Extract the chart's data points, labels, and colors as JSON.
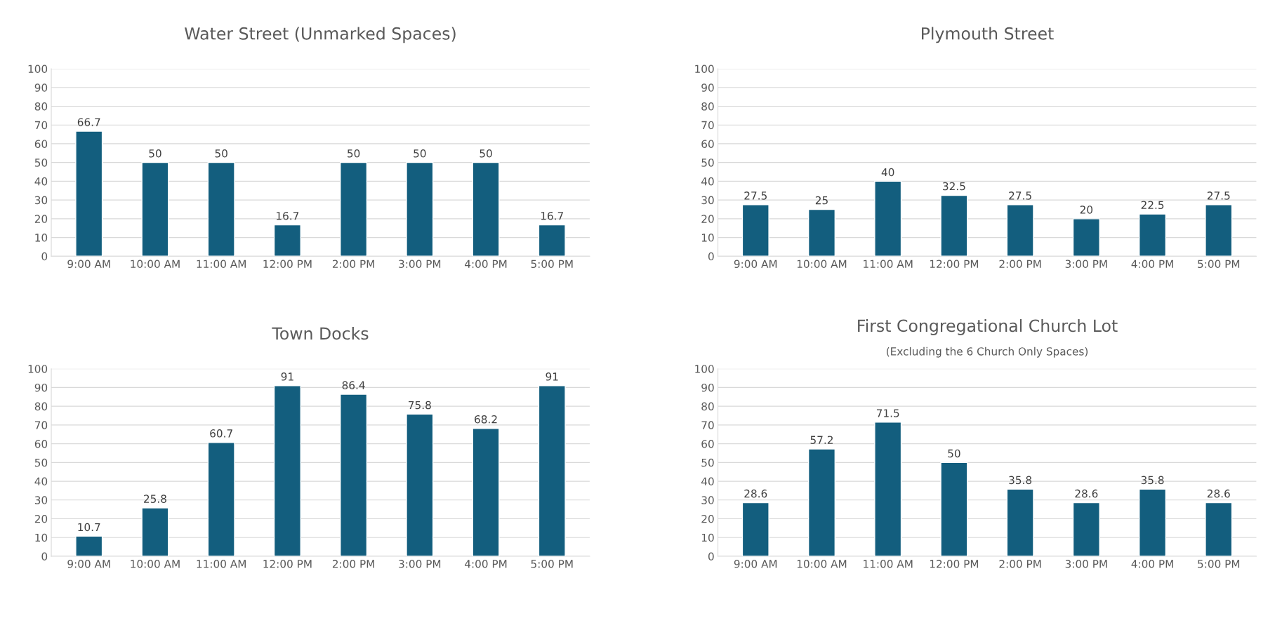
{
  "chart_data": [
    {
      "type": "bar",
      "title": "Water Street (Unmarked Spaces)",
      "categories": [
        "9:00 AM",
        "10:00 AM",
        "11:00 AM",
        "12:00 PM",
        "2:00 PM",
        "3:00 PM",
        "4:00 PM",
        "5:00 PM"
      ],
      "values": [
        66.7,
        50,
        50,
        16.7,
        50,
        50,
        50,
        16.7
      ],
      "color": "#135e7e",
      "ylim": [
        0,
        100
      ],
      "yticks": [
        0,
        10,
        20,
        30,
        40,
        50,
        60,
        70,
        80,
        90,
        100
      ],
      "grid": "y",
      "data_labels": true
    },
    {
      "type": "bar",
      "title": "Plymouth Street",
      "categories": [
        "9:00 AM",
        "10:00 AM",
        "11:00 AM",
        "12:00 PM",
        "2:00 PM",
        "3:00 PM",
        "4:00 PM",
        "5:00 PM"
      ],
      "values": [
        27.5,
        25,
        40,
        32.5,
        27.5,
        20,
        22.5,
        27.5
      ],
      "color": "#135e7e",
      "ylim": [
        0,
        100
      ],
      "yticks": [
        0,
        10,
        20,
        30,
        40,
        50,
        60,
        70,
        80,
        90,
        100
      ],
      "grid": "y",
      "data_labels": true
    },
    {
      "type": "bar",
      "title": "Town Docks",
      "categories": [
        "9:00 AM",
        "10:00 AM",
        "11:00 AM",
        "12:00 PM",
        "2:00 PM",
        "3:00 PM",
        "4:00 PM",
        "5:00 PM"
      ],
      "values": [
        10.7,
        25.8,
        60.7,
        91,
        86.4,
        75.8,
        68.2,
        91
      ],
      "color": "#135e7e",
      "ylim": [
        0,
        100
      ],
      "yticks": [
        0,
        10,
        20,
        30,
        40,
        50,
        60,
        70,
        80,
        90,
        100
      ],
      "grid": "y",
      "data_labels": true
    },
    {
      "type": "bar",
      "title": "First Congregational Church Lot",
      "subtitle": "(Excluding the 6 Church Only Spaces)",
      "categories": [
        "9:00 AM",
        "10:00 AM",
        "11:00 AM",
        "12:00 PM",
        "2:00 PM",
        "3:00 PM",
        "4:00 PM",
        "5:00 PM"
      ],
      "values": [
        28.6,
        57.2,
        71.5,
        50,
        35.8,
        28.6,
        35.8,
        28.6
      ],
      "color": "#135e7e",
      "ylim": [
        0,
        100
      ],
      "yticks": [
        0,
        10,
        20,
        30,
        40,
        50,
        60,
        70,
        80,
        90,
        100
      ],
      "grid": "y",
      "data_labels": true
    }
  ]
}
